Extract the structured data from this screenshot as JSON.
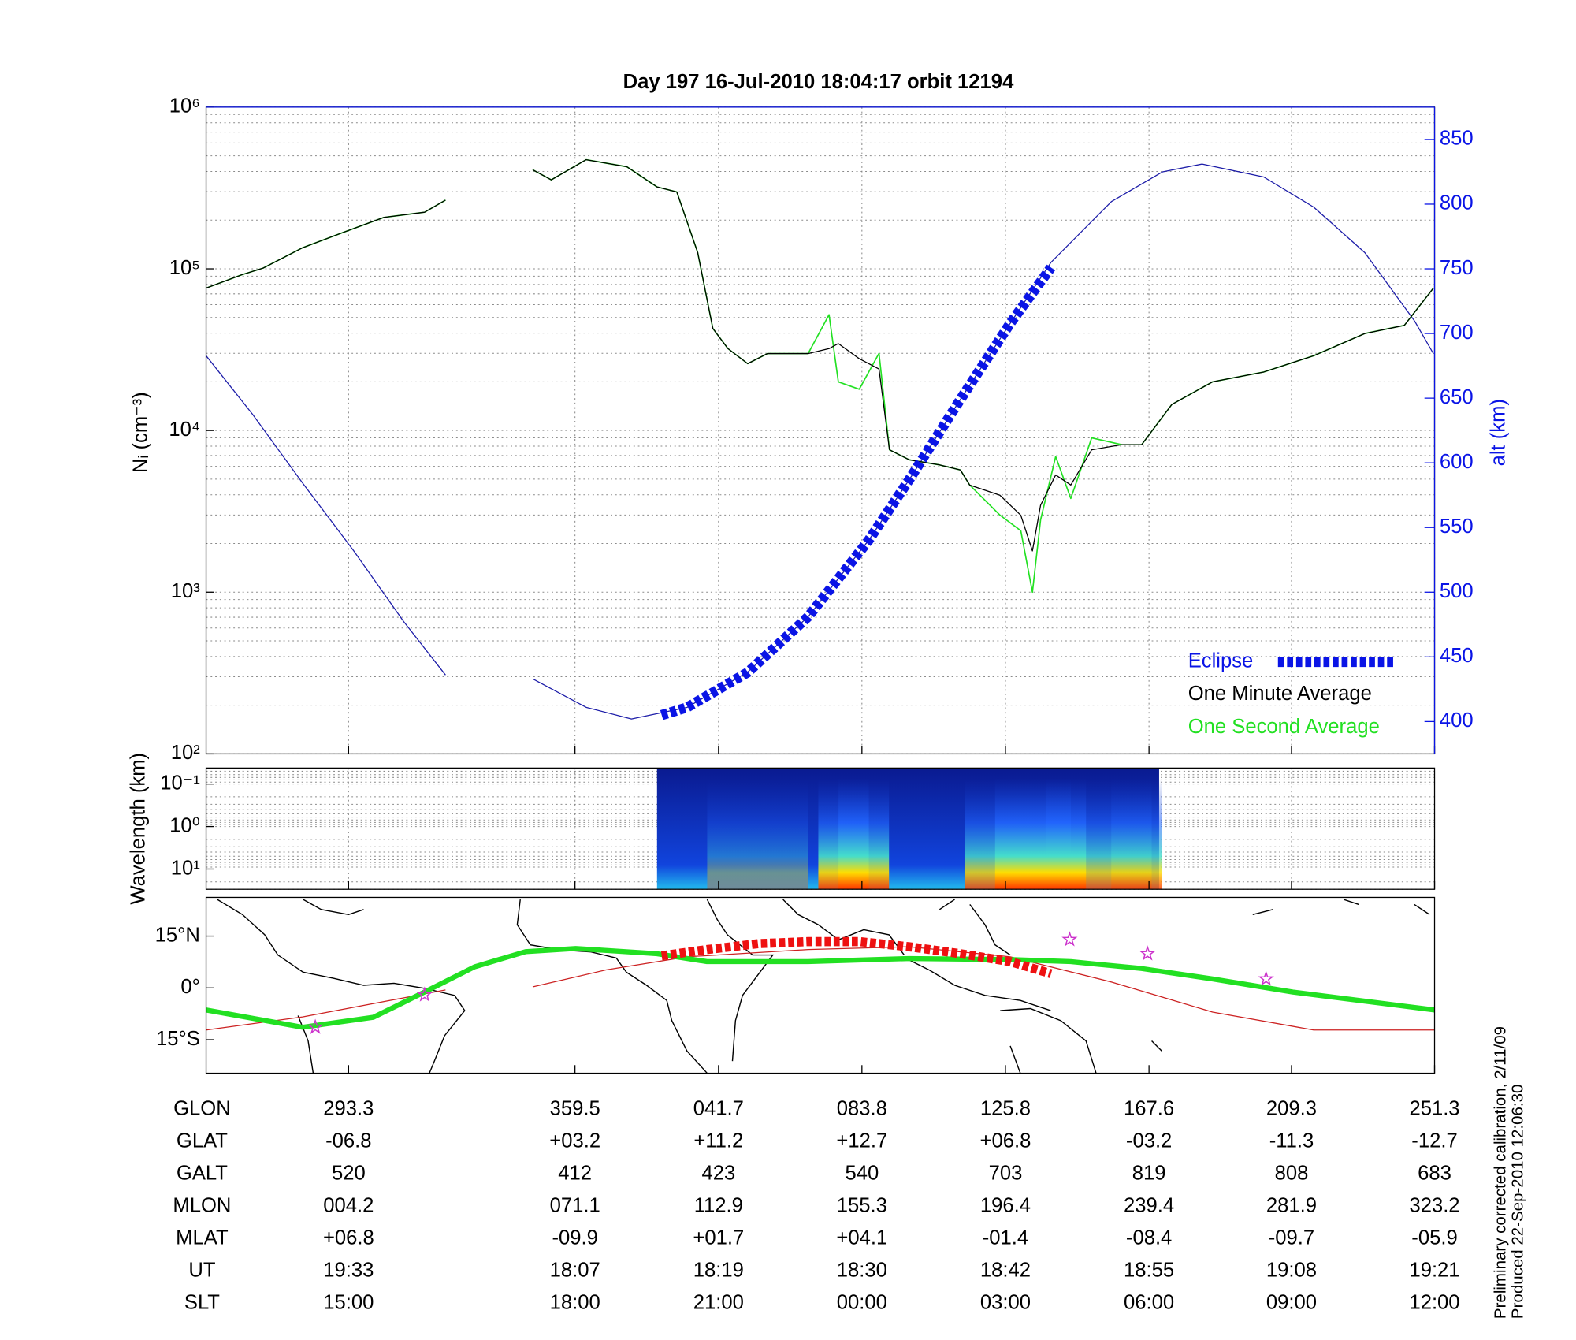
{
  "chart_data": [
    {
      "type": "line",
      "title": "Day 197  16-Jul-2010 18:04:17   orbit 12194",
      "ylabel": "Nᵢ (cm⁻³)",
      "y2label": "alt (km)",
      "log": true,
      "grid": true,
      "legend": "lower right",
      "xlim": [
        1055,
        1160.7
      ],
      "xticks": [
        1067.26,
        1086.74,
        1099.09,
        1111.43,
        1123.78,
        1136.13,
        1148.39,
        1160.7
      ],
      "ylim": [
        100,
        1000000
      ],
      "yticks": [
        {
          "value": 100,
          "label": "10²"
        },
        {
          "value": 1000,
          "label": "10³"
        },
        {
          "value": 10000,
          "label": "10⁴"
        },
        {
          "value": 100000,
          "label": "10⁵"
        },
        {
          "value": 1000000,
          "label": "10⁶"
        }
      ],
      "y2lim": [
        375,
        875
      ],
      "y2ticks": [
        400,
        450,
        500,
        550,
        600,
        650,
        700,
        750,
        800,
        850
      ],
      "altitude": {
        "color": "#1c1ca8",
        "axis": "y2",
        "x": [
          1055.0,
          1059.0,
          1063.3,
          1067.7,
          1072.0,
          1075.6,
          null,
          1083.1,
          1087.7,
          1091.6,
          1096.4,
          1101.6,
          1106.8,
          1112.0,
          1115.5,
          1119.9,
          1124.2,
          1127.7,
          1132.9,
          1137.3,
          1140.7,
          1146.0,
          1150.3,
          1154.7,
          1159.0,
          1160.6
        ],
        "values": [
          682.8,
          637.5,
          584.4,
          532,
          477.3,
          436,
          null,
          433,
          411,
          402,
          411,
          438.3,
          481,
          540,
          587,
          649,
          708,
          755,
          802,
          825,
          831,
          821,
          797.7,
          762.5,
          709.4,
          684.4
        ]
      },
      "series": [
        {
          "name": "Eclipse",
          "color": "#0a14e6",
          "axis": "y2",
          "dashed": true,
          "x": [
            1094.2,
            1096.4,
            1101.6,
            1106.8,
            1112.0,
            1115.5,
            1119.9,
            1124.2,
            1127.7
          ],
          "values": [
            405,
            411,
            438,
            481,
            540,
            587,
            649,
            708,
            751
          ]
        },
        {
          "name": "One Minute Average",
          "color": "#000000",
          "x": [
            1055.0,
            1058.1,
            1059.9,
            1063.3,
            1066.8,
            1070.3,
            1073.8,
            1075.6,
            null,
            1083.1,
            1084.7,
            1087.7,
            1091.2,
            1093.8,
            1095.5,
            1097.3,
            1098.6,
            1099.9,
            1101.6,
            1103.3,
            1106.8,
            1108.6,
            1109.4,
            1111.2,
            1112.9,
            1113.8,
            1115.5,
            1118.1,
            1119.9,
            1120.7,
            1123.3,
            1125.1,
            1126.1,
            1126.8,
            1128.1,
            1129.4,
            1131.2,
            1133.8,
            1135.5,
            1138.1,
            1141.6,
            1146.0,
            1150.3,
            1154.7,
            1158.1,
            1160.6
          ],
          "values": [
            76000,
            92000,
            101000,
            135000,
            168000,
            208000,
            224000,
            266000,
            null,
            410000,
            355000,
            473000,
            428000,
            321000,
            299000,
            126000,
            42800,
            32100,
            25900,
            29900,
            29900,
            32100,
            34500,
            27800,
            24000,
            7600,
            6590,
            6130,
            5700,
            4600,
            3980,
            2990,
            1800,
            3450,
            5310,
            4600,
            7600,
            8170,
            8170,
            14500,
            20000,
            23000,
            29000,
            39800,
            44700,
            76000
          ]
        },
        {
          "name": "One Second Average",
          "color": "#22e022",
          "x": [
            1055.0,
            1058.1,
            1059.9,
            1063.3,
            1066.8,
            1070.3,
            1073.8,
            1075.6,
            null,
            1083.1,
            1084.7,
            1087.7,
            1091.2,
            1093.8,
            1095.5,
            1097.3,
            1098.6,
            1099.9,
            1101.6,
            1103.3,
            1106.8,
            1108.6,
            1109.4,
            1111.2,
            1112.9,
            1113.8,
            1115.5,
            1118.1,
            1119.9,
            1120.7,
            1123.3,
            1125.1,
            1126.1,
            1126.8,
            1128.1,
            1129.4,
            1131.2,
            1133.8,
            1135.5,
            1138.1,
            1141.6,
            1146.0,
            1150.3,
            1154.7,
            1158.1,
            1160.6
          ],
          "values": [
            76000,
            92000,
            101000,
            135000,
            168000,
            208000,
            224000,
            266000,
            null,
            410000,
            355000,
            473000,
            428000,
            321000,
            299000,
            126000,
            42800,
            32100,
            25900,
            29900,
            29900,
            52000,
            20000,
            18000,
            30000,
            7600,
            6590,
            6130,
            5700,
            4600,
            3000,
            2400,
            1000,
            2800,
            6900,
            3800,
            9000,
            8170,
            8170,
            14500,
            20000,
            23000,
            29000,
            39800,
            44700,
            76000
          ]
        }
      ]
    },
    {
      "type": "image",
      "ylabel": "Wavelength (km)",
      "log": true,
      "y_reversed": true,
      "grid": true,
      "ylim": [
        0.042,
        30
      ],
      "yticks": [
        {
          "value": 0.1,
          "label": "10⁻¹"
        },
        {
          "value": 1,
          "label": "10⁰"
        },
        {
          "value": 10,
          "label": "10¹"
        }
      ],
      "x_extent": [
        1093.8,
        1137.0
      ]
    },
    {
      "type": "map",
      "ylim": [
        -24.7,
        26.2
      ],
      "yticks": [
        {
          "value": 15,
          "label": "15°N"
        },
        {
          "value": 0,
          "label": "0°"
        },
        {
          "value": -15,
          "label": "15°S"
        }
      ],
      "series": [
        {
          "color": "#cc2222",
          "width": 1,
          "x": [
            1055.0,
            1063.3,
            1075.6,
            null,
            1083.1,
            1089.4,
            1096.4,
            1106.8,
            1115.5,
            1124.2,
            1132.9,
            1141.6,
            1150.3,
            1160.7
          ],
          "values": [
            -12.2,
            -8.4,
            -0.6,
            null,
            0.3,
            5.2,
            9.0,
            11.1,
            11.9,
            9.0,
            1.7,
            -7.0,
            -12.2,
            -12.2
          ]
        },
        {
          "color": "#22e022",
          "width": 5,
          "x": [
            1055.0,
            1063.3,
            1069.4,
            1073.8,
            1078.1,
            1082.5,
            1086.8,
            1093.8,
            1098.1,
            1106.8,
            1115.5,
            1124.2,
            1129.4,
            1135.5,
            1141.6,
            1148.5,
            1160.7
          ],
          "values": [
            -6.4,
            -11.4,
            -8.5,
            -1.2,
            6.1,
            10.5,
            11.4,
            9.9,
            7.6,
            7.6,
            8.5,
            8.2,
            7.6,
            5.6,
            2.6,
            -1.2,
            -6.4
          ]
        },
        {
          "color": "#ee1111",
          "width": 9,
          "dashed": true,
          "x": [
            1094.2,
            1098.1,
            1102.5,
            1106.8,
            1111.2,
            1115.5,
            1119.9,
            1124.2,
            1127.7
          ],
          "values": [
            9.3,
            11.1,
            12.8,
            13.4,
            13.4,
            11.9,
            9.9,
            7.6,
            4.1
          ]
        }
      ],
      "markers": {
        "color": "#cc33cc",
        "x": [
          1064.4,
          1073.8,
          1129.3,
          1136.0,
          1146.2
        ],
        "values": [
          -11.4,
          -2.0,
          14.0,
          9.9,
          2.6
        ]
      }
    }
  ],
  "table": {
    "rows": [
      [
        "GLON",
        "293.3",
        "359.5",
        "041.7",
        "083.8",
        "125.8",
        "167.6",
        "209.3",
        "251.3"
      ],
      [
        "GLAT",
        "-06.8",
        "+03.2",
        "+11.2",
        "+12.7",
        "+06.8",
        "-03.2",
        "-11.3",
        "-12.7"
      ],
      [
        "GALT",
        "520",
        "412",
        "423",
        "540",
        "703",
        "819",
        "808",
        "683"
      ],
      [
        "MLON",
        "004.2",
        "071.1",
        "112.9",
        "155.3",
        "196.4",
        "239.4",
        "281.9",
        "323.2"
      ],
      [
        "MLAT",
        "+06.8",
        "-09.9",
        "+01.7",
        "+04.1",
        "-01.4",
        "-08.4",
        "-09.7",
        "-05.9"
      ],
      [
        "UT",
        "19:33",
        "18:07",
        "18:19",
        "18:30",
        "18:42",
        "18:55",
        "19:08",
        "19:21"
      ],
      [
        "SLT",
        "15:00",
        "18:00",
        "21:00",
        "00:00",
        "03:00",
        "06:00",
        "09:00",
        "12:00"
      ]
    ]
  },
  "footnotes": [
    "Preliminary corrected calibration, 2/11/09",
    "Produced 22-Sep-2010 12:06:30"
  ]
}
